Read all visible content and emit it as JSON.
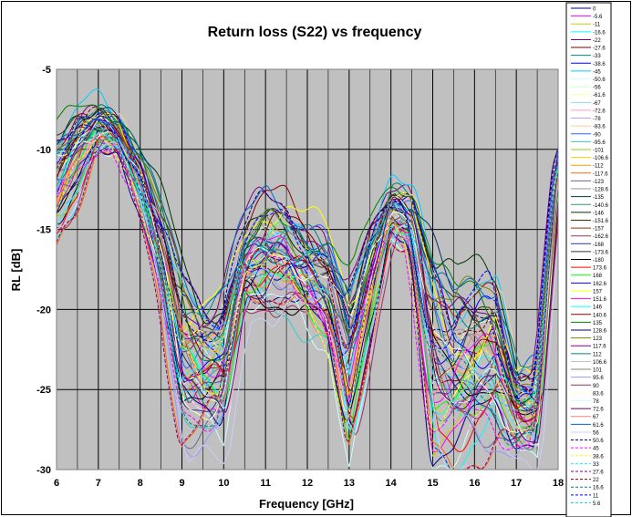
{
  "chart_data": {
    "type": "line",
    "title": "Return loss (S22) vs frequency",
    "xlabel": "Frequency [GHz]",
    "ylabel": "RL [dB]",
    "xlim": [
      6,
      18
    ],
    "ylim": [
      -30,
      -5
    ],
    "xticks": [
      6,
      7,
      8,
      9,
      10,
      11,
      12,
      13,
      14,
      15,
      16,
      17,
      18
    ],
    "yticks": [
      -5,
      -10,
      -15,
      -20,
      -25,
      -30
    ],
    "grid": true,
    "plot_background": "#c0c0c0",
    "legend_placement": "right",
    "series_names": [
      "0",
      "-5.6",
      "-11",
      "-16.6",
      "-22",
      "-27.6",
      "-33",
      "-38.6",
      "-45",
      "-50.6",
      "-56",
      "-61.6",
      "-67",
      "-72.6",
      "-78",
      "-83.6",
      "-90",
      "-95.6",
      "-101",
      "-106.6",
      "-112",
      "-117.6",
      "-123",
      "-128.6",
      "-135",
      "-140.6",
      "-146",
      "-151.6",
      "-157",
      "-162.6",
      "-168",
      "-173.6",
      "-180",
      "173.6",
      "168",
      "162.6",
      "157",
      "151.6",
      "146",
      "140.6",
      "135",
      "128.6",
      "123",
      "117.6",
      "112",
      "106.6",
      "101",
      "95.6",
      "90",
      "83.6",
      "78",
      "72.6",
      "67",
      "61.6",
      "56",
      "50.6",
      "45",
      "38.6",
      "33",
      "27.6",
      "22",
      "16.6",
      "11",
      "5.6"
    ],
    "series_colors": [
      "#000080",
      "#ff00ff",
      "#cccc00",
      "#00ffff",
      "#800080",
      "#800000",
      "#008080",
      "#0000ff",
      "#00ccff",
      "#ccffff",
      "#ccffcc",
      "#ffff99",
      "#99ccff",
      "#ff99cc",
      "#cc99ff",
      "#ffcc99",
      "#3366ff",
      "#33cccc",
      "#99cc00",
      "#ffcc00",
      "#ff9900",
      "#ff6600",
      "#666699",
      "#969696",
      "#003366",
      "#339966",
      "#003300",
      "#333300",
      "#993300",
      "#993366",
      "#333399",
      "#333333",
      "#000000",
      "#ff0000",
      "#00ff00",
      "#0000ff",
      "#ffff00",
      "#ff00ff",
      "#00ffff",
      "#800000",
      "#008000",
      "#000080",
      "#808000",
      "#800080",
      "#008080",
      "#c0c0c0",
      "#808080",
      "#9999ff",
      "#993366",
      "#ffffcc",
      "#ccffff",
      "#660066",
      "#ff8080",
      "#0066cc",
      "#ccccff",
      "#000080",
      "#ff00ff",
      "#ffff00",
      "#00ffff",
      "#800080",
      "#800000",
      "#008080",
      "#0000ff",
      "#00ccff"
    ],
    "solid_count": 55,
    "envelope": {
      "x": [
        6.0,
        6.5,
        7.0,
        7.5,
        8.0,
        8.5,
        9.0,
        9.5,
        10.0,
        10.5,
        11.0,
        11.5,
        12.0,
        12.5,
        13.0,
        13.5,
        14.0,
        14.5,
        15.0,
        15.5,
        16.0,
        16.5,
        17.0,
        17.5,
        18.0
      ],
      "upper": [
        -7.5,
        -5.5,
        -6.0,
        -7.5,
        -9.5,
        -12.0,
        -14.5,
        -16.5,
        -16.0,
        -13.5,
        -11.5,
        -11.5,
        -12.5,
        -13.5,
        -16.0,
        -12.5,
        -11.0,
        -11.5,
        -13.0,
        -16.0,
        -15.0,
        -14.5,
        -22.0,
        -22.0,
        -9.5
      ],
      "lower": [
        -16.0,
        -14.0,
        -10.5,
        -10.5,
        -14.0,
        -20.0,
        -30.0,
        -30.0,
        -30.0,
        -20.5,
        -21.0,
        -21.0,
        -22.0,
        -23.0,
        -30.0,
        -23.0,
        -16.0,
        -17.0,
        -30.0,
        -30.0,
        -30.0,
        -30.0,
        -30.0,
        -30.0,
        -12.0
      ]
    }
  }
}
